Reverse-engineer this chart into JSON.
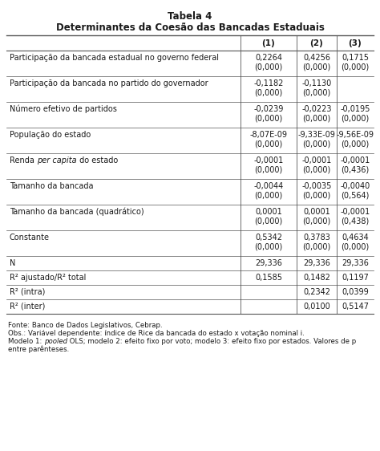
{
  "title1": "Tabela 4",
  "title2": "Determinantes da Coesão das Bancadas Estaduais",
  "col_headers": [
    "(1)",
    "(2)",
    "(3)"
  ],
  "rows": [
    {
      "label": "Participação da bancada estadual no governo federal",
      "label_parts": null,
      "values": [
        "0,2264",
        "0,4256",
        "0,1715"
      ],
      "pvalues": [
        "(0,000)",
        "(0,000)",
        "(0,000)"
      ]
    },
    {
      "label": "Participação da bancada no partido do governador",
      "label_parts": null,
      "values": [
        "-0,1182",
        "-0,1130",
        ""
      ],
      "pvalues": [
        "(0,000)",
        "(0,000)",
        ""
      ]
    },
    {
      "label": "Número efetivo de partidos",
      "label_parts": null,
      "values": [
        "-0,0239",
        "-0,0223",
        "-0,0195"
      ],
      "pvalues": [
        "(0,000)",
        "(0,000)",
        "(0,000)"
      ]
    },
    {
      "label": "População do estado",
      "label_parts": null,
      "values": [
        "-8,07E-09",
        "-9,33E-09",
        "-9,56E-09"
      ],
      "pvalues": [
        "(0,000)",
        "(0,000)",
        "(0,000)"
      ]
    },
    {
      "label": null,
      "label_parts": [
        "Renda ",
        "per capita",
        " do estado"
      ],
      "label_italic": [
        false,
        true,
        false
      ],
      "values": [
        "-0,0001",
        "-0,0001",
        "-0,0001"
      ],
      "pvalues": [
        "(0,000)",
        "(0,000)",
        "(0,436)"
      ]
    },
    {
      "label": "Tamanho da bancada",
      "label_parts": null,
      "values": [
        "-0,0044",
        "-0,0035",
        "-0,0040"
      ],
      "pvalues": [
        "(0,000)",
        "(0,000)",
        "(0,564)"
      ]
    },
    {
      "label": "Tamanho da bancada (quadrático)",
      "label_parts": null,
      "values": [
        "0,0001",
        "0,0001",
        "-0,0001"
      ],
      "pvalues": [
        "(0,000)",
        "(0,000)",
        "(0,438)"
      ]
    },
    {
      "label": "Constante",
      "label_parts": null,
      "values": [
        "0,5342",
        "0,3783",
        "0,4634"
      ],
      "pvalues": [
        "(0,000)",
        "(0,000)",
        "(0,000)"
      ]
    }
  ],
  "stat_rows": [
    {
      "label": "N",
      "values": [
        "29,336",
        "29,336",
        "29,336"
      ]
    },
    {
      "label": "R² ajustado/R² total",
      "values": [
        "0,1585",
        "0,1482",
        "0,1197"
      ]
    },
    {
      "label": "R² (intra)",
      "values": [
        "",
        "0,2342",
        "0,0399"
      ]
    },
    {
      "label": "R² (inter)",
      "values": [
        "",
        "0,0100",
        "0,5147"
      ]
    }
  ],
  "footnotes": [
    "Fonte: Banco de Dados Legislativos, Cebrap.",
    "Obs.: Variável dependente: índice de Rice da bancada do estado x votação nominal i.",
    "Modelo 1: \u0007pooled\u0007 OLS; modelo 2: efeito fixo por voto; modelo 3: efeito fixo por estados. Valores de p",
    "entre parênteses."
  ],
  "bg_color": "#ffffff",
  "text_color": "#1a1a1a",
  "line_color": "#555555"
}
